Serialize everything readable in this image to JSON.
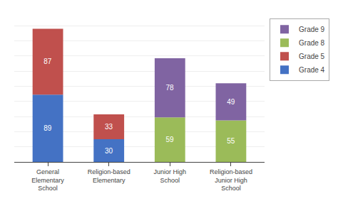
{
  "chart_data": {
    "type": "bar",
    "stacked": true,
    "categories": [
      "General\nElementary\nSchool",
      "Religion-based\nElementary",
      "Junior High\nSchool",
      "Religion-based\nJunior High\nSchool"
    ],
    "series": [
      {
        "name": "Grade 4",
        "color": "#4472C4",
        "values": [
          89,
          30,
          0,
          0
        ]
      },
      {
        "name": "Grade 5",
        "color": "#C0504D",
        "values": [
          87,
          33,
          0,
          0
        ]
      },
      {
        "name": "Grade 8",
        "color": "#9BBB59",
        "values": [
          0,
          0,
          59,
          55
        ]
      },
      {
        "name": "Grade 9",
        "color": "#8064A2",
        "values": [
          0,
          0,
          78,
          49
        ]
      }
    ],
    "ylim": [
      0,
      200
    ],
    "yticks": [
      0,
      20,
      40,
      60,
      80,
      100,
      120,
      140,
      160,
      180,
      200
    ],
    "grid": true,
    "legend": "right",
    "data_labels": true,
    "tick_labels": "x"
  }
}
